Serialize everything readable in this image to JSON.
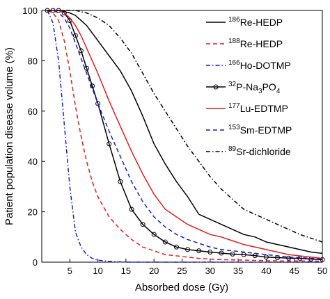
{
  "chart_data": {
    "type": "line",
    "x_label": "Absorbed dose (Gy)",
    "y_label": "Patient population disease volume (%)",
    "x": [
      1,
      2,
      3,
      4,
      5,
      6,
      7,
      8,
      9,
      10,
      12,
      14,
      16,
      18,
      20,
      22,
      24,
      26,
      28,
      30,
      32,
      34,
      36,
      38,
      40,
      42,
      44,
      46,
      48,
      50
    ],
    "xlim": [
      0,
      50
    ],
    "xticks": [
      5,
      10,
      15,
      20,
      25,
      30,
      35,
      40,
      45,
      50
    ],
    "ylim": [
      0,
      100
    ],
    "yticks": [
      0,
      20,
      40,
      60,
      80,
      100
    ],
    "grid": false,
    "legend": "upper right",
    "series": [
      {
        "name": "186Re-HEDP",
        "color": "#000000",
        "dash": "solid",
        "values": [
          100,
          100,
          100,
          99.5,
          99,
          98,
          96,
          94,
          91,
          88,
          82,
          76,
          68,
          58,
          47,
          39,
          32,
          26,
          19,
          17,
          15,
          13,
          11,
          10,
          8,
          7,
          6,
          5,
          4,
          3.5
        ]
      },
      {
        "name": "188Re-HEDP",
        "color": "#e8191c",
        "dash": "dashed",
        "values": [
          100,
          99,
          96,
          88,
          76,
          62,
          50,
          40,
          32,
          26,
          18,
          13,
          9,
          6,
          4.5,
          3,
          2.5,
          2,
          1.5,
          1.2,
          1,
          0.9,
          0.8,
          0.7,
          0.6,
          0.5,
          0.5,
          0.5,
          0.4,
          0.4
        ]
      },
      {
        "name": "166Ho-DOTMP",
        "color": "#1a1acc",
        "dash": "dashdot",
        "values": [
          100,
          95,
          80,
          55,
          30,
          12,
          6,
          3,
          1.5,
          0.8,
          0.3,
          0.1,
          0,
          0,
          0,
          0,
          0,
          0,
          0,
          0,
          0,
          0,
          0,
          0,
          0,
          0,
          0,
          0,
          0,
          0
        ]
      },
      {
        "name": "32P-Na3PO4",
        "color": "#000000",
        "dash": "solid",
        "marker": "circle",
        "values": [
          100,
          100,
          100,
          99,
          96,
          90,
          84,
          77,
          70,
          63,
          47,
          32,
          21,
          15,
          11,
          8,
          6,
          5,
          4.5,
          4,
          3.6,
          3.2,
          3,
          2.6,
          2,
          1.8,
          1.6,
          1.5,
          1.2,
          1
        ]
      },
      {
        "name": "177Lu-EDTMP",
        "color": "#e8191c",
        "dash": "solid",
        "values": [
          100,
          100,
          100,
          99,
          97,
          94,
          90,
          85,
          80,
          75,
          64,
          54,
          44,
          35,
          27,
          21,
          18,
          15,
          13,
          11,
          10,
          8.5,
          7,
          6,
          5,
          4,
          3,
          2.5,
          2,
          1.5
        ]
      },
      {
        "name": "153Sm-EDTMP",
        "color": "#1a1acc",
        "dash": "dashed",
        "values": [
          100,
          100,
          99,
          97,
          93,
          87,
          81,
          75,
          69,
          63,
          52,
          42,
          32,
          24,
          18,
          14,
          11,
          9,
          7.5,
          6,
          5,
          4.5,
          4,
          3.5,
          3,
          2.5,
          2,
          1.8,
          1.5,
          1.2
        ]
      },
      {
        "name": "89Sr-dichloride",
        "color": "#000000",
        "dash": "dashdot",
        "values": [
          100,
          100,
          100,
          100,
          100,
          100,
          99.5,
          99,
          98,
          97,
          94,
          89,
          83,
          75,
          67,
          60,
          53,
          46,
          40,
          34,
          29,
          25,
          21,
          19,
          17,
          15,
          13,
          11,
          9.5,
          8
        ]
      }
    ]
  }
}
